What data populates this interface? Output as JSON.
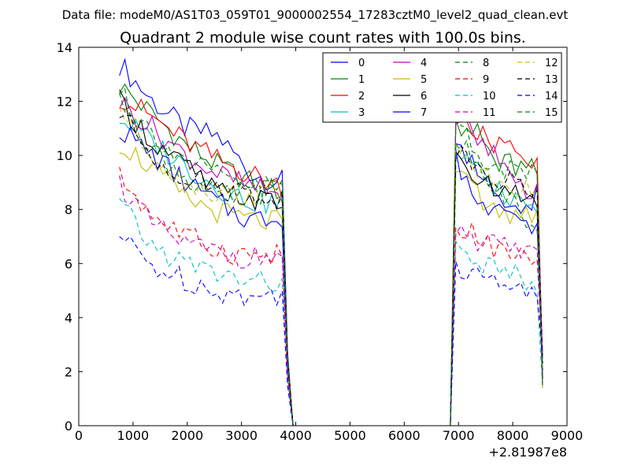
{
  "chart_data": {
    "type": "line",
    "suptitle": "Data file: modeM0/AS1T03_059T01_9000002554_17283cztM0_level2_quad_clean.evt",
    "title": "Quadrant 2 module wise count rates with 100.0s bins.",
    "xlabel": "",
    "ylabel": "",
    "x_offset_label": "+2.81987e8",
    "xlim": [
      0,
      9000
    ],
    "ylim": [
      0,
      14
    ],
    "xticks": [
      0,
      1000,
      2000,
      3000,
      4000,
      5000,
      6000,
      7000,
      8000,
      9000
    ],
    "xtick_labels": [
      "0",
      "1000",
      "2000",
      "3000",
      "4000",
      "5000",
      "6000",
      "7000",
      "8000",
      "9000"
    ],
    "yticks": [
      0,
      2,
      4,
      6,
      8,
      10,
      12,
      14
    ],
    "ytick_labels": [
      "0",
      "2",
      "4",
      "6",
      "8",
      "10",
      "12",
      "14"
    ],
    "grid": false,
    "legend_position": "top-right",
    "legend_columns": 4,
    "segments": [
      {
        "start": 750,
        "end": 3950,
        "drop_to_zero_at": 3950
      },
      {
        "start": 6850,
        "end": 8550,
        "rise_from_zero_at": 6850
      }
    ],
    "series": [
      {
        "name": "0",
        "color": "#0000ff",
        "style": "solid",
        "seg1": [
          13.4,
          12.0,
          11.0,
          10.7,
          9.3,
          9.0
        ],
        "seg2": [
          10.3,
          9.5,
          8.5,
          8.0,
          8.5
        ]
      },
      {
        "name": "1",
        "color": "#008000",
        "style": "solid",
        "seg1": [
          12.6,
          11.5,
          10.4,
          9.6,
          9.0,
          8.6
        ],
        "seg2": [
          11.0,
          10.8,
          9.9,
          9.5,
          9.6
        ]
      },
      {
        "name": "2",
        "color": "#ff0000",
        "style": "solid",
        "seg1": [
          12.2,
          11.4,
          10.5,
          9.8,
          9.3,
          8.8
        ],
        "seg2": [
          11.5,
          11.0,
          10.4,
          10.2,
          9.8
        ]
      },
      {
        "name": "3",
        "color": "#00bfbf",
        "style": "solid",
        "seg1": [
          11.4,
          10.5,
          9.6,
          8.8,
          8.3,
          8.2
        ],
        "seg2": [
          10.2,
          9.5,
          8.8,
          8.2,
          8.2
        ]
      },
      {
        "name": "4",
        "color": "#bf00bf",
        "style": "solid",
        "seg1": [
          12.0,
          11.0,
          10.0,
          9.3,
          8.8,
          8.5
        ],
        "seg2": [
          11.6,
          10.8,
          9.8,
          9.0,
          8.6
        ]
      },
      {
        "name": "5",
        "color": "#bfbf00",
        "style": "solid",
        "seg1": [
          10.5,
          9.5,
          8.4,
          7.9,
          7.6,
          7.5
        ],
        "seg2": [
          9.8,
          8.5,
          8.0,
          7.8,
          8.0
        ]
      },
      {
        "name": "6",
        "color": "#000000",
        "style": "solid",
        "seg1": [
          12.0,
          10.5,
          9.6,
          8.6,
          8.4,
          8.2
        ],
        "seg2": [
          10.0,
          9.0,
          8.7,
          8.8,
          8.3
        ]
      },
      {
        "name": "7",
        "color": "#0000ff",
        "style": "solid",
        "seg1": [
          11.0,
          10.0,
          9.0,
          8.2,
          7.6,
          7.8
        ],
        "seg2": [
          9.8,
          8.6,
          8.0,
          7.7,
          7.5
        ]
      },
      {
        "name": "8",
        "color": "#008000",
        "style": "dashed",
        "seg1": [
          12.4,
          10.2,
          9.2,
          8.4,
          8.6,
          8.8
        ],
        "seg2": [
          10.5,
          9.8,
          8.8,
          8.0,
          7.4
        ]
      },
      {
        "name": "9",
        "color": "#ff0000",
        "style": "dashed",
        "seg1": [
          9.2,
          7.8,
          7.0,
          6.5,
          6.3,
          6.3
        ],
        "seg2": [
          7.4,
          7.0,
          6.6,
          6.4,
          6.1
        ]
      },
      {
        "name": "10",
        "color": "#00bfbf",
        "style": "dashed",
        "seg1": [
          8.2,
          6.6,
          6.0,
          5.6,
          5.3,
          5.3
        ],
        "seg2": [
          6.6,
          6.2,
          5.8,
          5.6,
          5.2
        ]
      },
      {
        "name": "11",
        "color": "#bf00bf",
        "style": "dashed",
        "seg1": [
          9.0,
          7.4,
          6.7,
          6.4,
          6.2,
          6.3
        ],
        "seg2": [
          7.2,
          6.9,
          6.6,
          6.5,
          6.2
        ]
      },
      {
        "name": "12",
        "color": "#bfbf00",
        "style": "dashed",
        "seg1": [
          11.8,
          10.0,
          9.0,
          8.6,
          8.5,
          8.6
        ],
        "seg2": [
          10.6,
          9.5,
          9.0,
          8.8,
          8.6
        ]
      },
      {
        "name": "13",
        "color": "#000000",
        "style": "dashed",
        "seg1": [
          11.6,
          10.0,
          9.2,
          8.8,
          8.6,
          8.4
        ],
        "seg2": [
          10.2,
          9.4,
          9.0,
          9.2,
          8.8
        ]
      },
      {
        "name": "14",
        "color": "#0000ff",
        "style": "dashed",
        "seg1": [
          7.0,
          5.9,
          5.4,
          5.0,
          4.7,
          4.9
        ],
        "seg2": [
          6.0,
          5.5,
          5.1,
          4.9,
          4.7
        ]
      },
      {
        "name": "15",
        "color": "#008000",
        "style": "dashed",
        "seg1": [
          12.2,
          10.8,
          9.8,
          9.2,
          8.9,
          8.8
        ],
        "seg2": [
          11.2,
          10.2,
          9.6,
          9.4,
          9.4
        ]
      }
    ]
  }
}
